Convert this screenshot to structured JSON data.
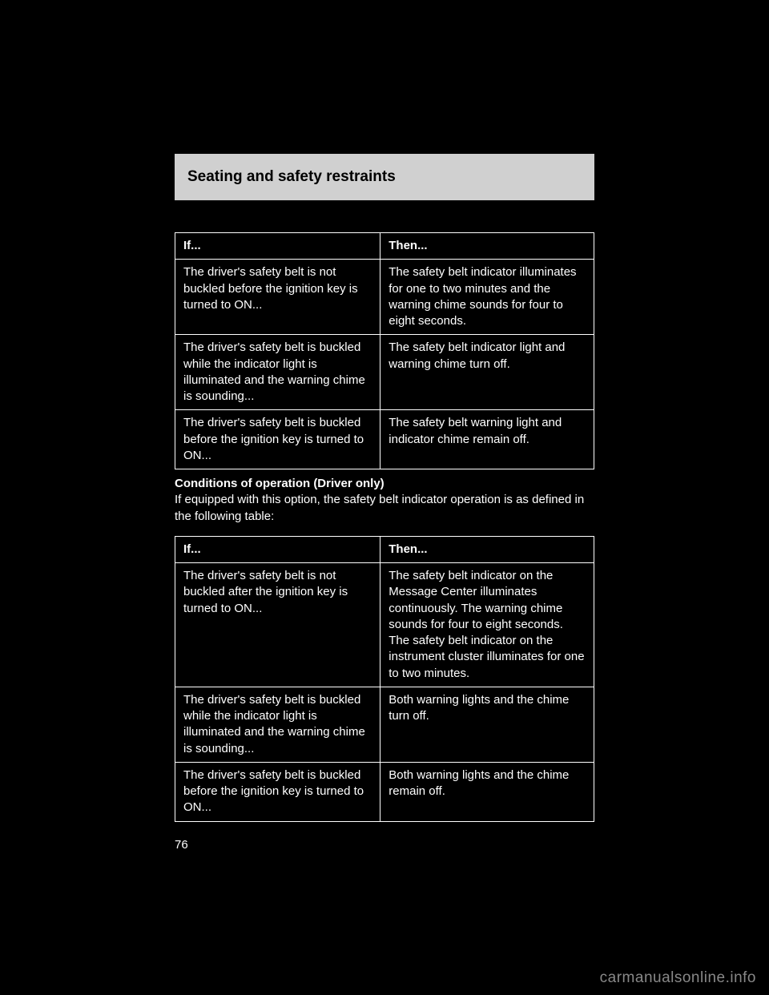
{
  "header": {
    "title": "Seating and safety restraints"
  },
  "table1": {
    "headers": [
      "If...",
      "Then..."
    ],
    "rows": [
      [
        "The driver's safety belt is not buckled before the ignition key is turned to ON...",
        "The safety belt indicator illuminates for one to two minutes and the warning chime sounds for four to eight seconds."
      ],
      [
        "The driver's safety belt is buckled while the indicator light is illuminated and the warning chime is sounding...",
        "The safety belt indicator light and warning chime turn off."
      ],
      [
        "The driver's safety belt is buckled before the ignition key is turned to ON...",
        "The safety belt warning light and indicator chime remain off."
      ]
    ]
  },
  "middle_text": {
    "heading": "Conditions of operation (Driver only)",
    "sub": "If equipped with this option, the safety belt indicator operation is as defined in the following table:"
  },
  "table2": {
    "headers": [
      "If...",
      "Then..."
    ],
    "rows": [
      [
        "The driver's safety belt is not buckled after the ignition key is turned to ON...",
        "The safety belt indicator on the Message Center illuminates continuously. The warning chime sounds for four to eight seconds. The safety belt indicator on the instrument cluster illuminates for one to two minutes."
      ],
      [
        "The driver's safety belt is buckled while the indicator light is illuminated and the warning chime is sounding...",
        "Both warning lights and the chime turn off."
      ],
      [
        "The driver's safety belt is buckled before the ignition key is turned to ON...",
        "Both warning lights and the chime remain off."
      ]
    ]
  },
  "page_number": "76",
  "watermark": "carmanualsonline.info"
}
